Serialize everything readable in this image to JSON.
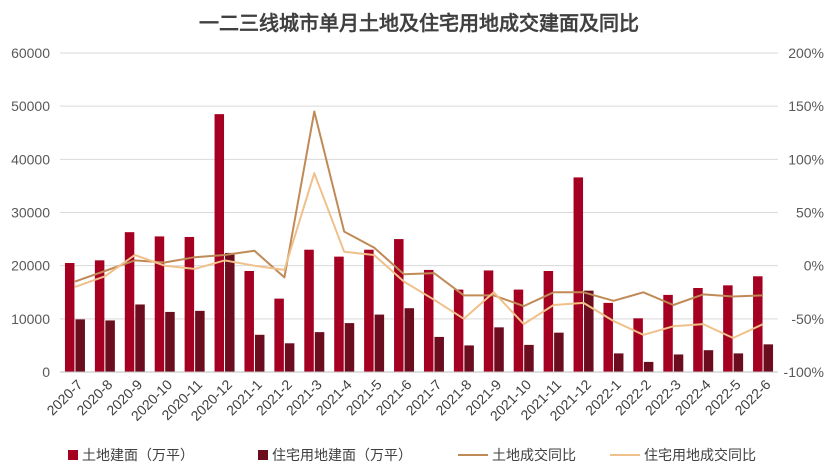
{
  "chart_data": {
    "type": "bar+line",
    "title": "一二三线城市单月土地及住宅用地成交建面及同比",
    "categories": [
      "2020-7",
      "2020-8",
      "2020-9",
      "2020-10",
      "2020-11",
      "2020-12",
      "2021-1",
      "2021-2",
      "2021-3",
      "2021-4",
      "2021-5",
      "2021-6",
      "2021-7",
      "2021-8",
      "2021-9",
      "2021-10",
      "2021-11",
      "2021-12",
      "2022-1",
      "2022-2",
      "2022-3",
      "2022-4",
      "2022-5",
      "2022-6"
    ],
    "left_axis": {
      "min": 0,
      "max": 60000,
      "step": 10000,
      "ticks": [
        "0",
        "10000",
        "20000",
        "30000",
        "40000",
        "50000",
        "60000"
      ]
    },
    "right_axis": {
      "min": -100,
      "max": 200,
      "step": 50,
      "ticks": [
        "-100%",
        "-50%",
        "0%",
        "50%",
        "100%",
        "150%",
        "200%"
      ]
    },
    "bar_series": [
      {
        "name": "土地建面（万平）",
        "color": "#a50021",
        "values": [
          20500,
          21000,
          26300,
          25500,
          25400,
          48500,
          19000,
          13800,
          23000,
          21700,
          23000,
          25000,
          19200,
          15500,
          19100,
          15500,
          19000,
          36600,
          13000,
          10100,
          14500,
          15800,
          16300,
          18000
        ]
      },
      {
        "name": "住宅用地建面（万平）",
        "color": "#6b0d1e",
        "values": [
          9900,
          9700,
          12700,
          11300,
          11500,
          22400,
          7000,
          5400,
          7500,
          9200,
          10800,
          12000,
          6600,
          5000,
          8400,
          5100,
          7400,
          15300,
          3500,
          1900,
          3300,
          4100,
          3500,
          5200
        ]
      }
    ],
    "line_series": [
      {
        "name": "土地成交同比",
        "color": "#c08a57",
        "values": [
          -15,
          -5,
          5,
          3,
          8,
          10,
          14,
          -11,
          145,
          32,
          17,
          -8,
          -7,
          -28,
          -28,
          -38,
          -25,
          -25,
          -33,
          -25,
          -37,
          -27,
          -29,
          -28
        ]
      },
      {
        "name": "住宅用地成交同比",
        "color": "#f0c08a",
        "values": [
          -20,
          -10,
          10,
          0,
          -3,
          5,
          0,
          -4,
          87,
          13,
          10,
          -15,
          -32,
          -50,
          -25,
          -55,
          -37,
          -35,
          -52,
          -65,
          -57,
          -55,
          -68,
          -55
        ]
      }
    ]
  }
}
